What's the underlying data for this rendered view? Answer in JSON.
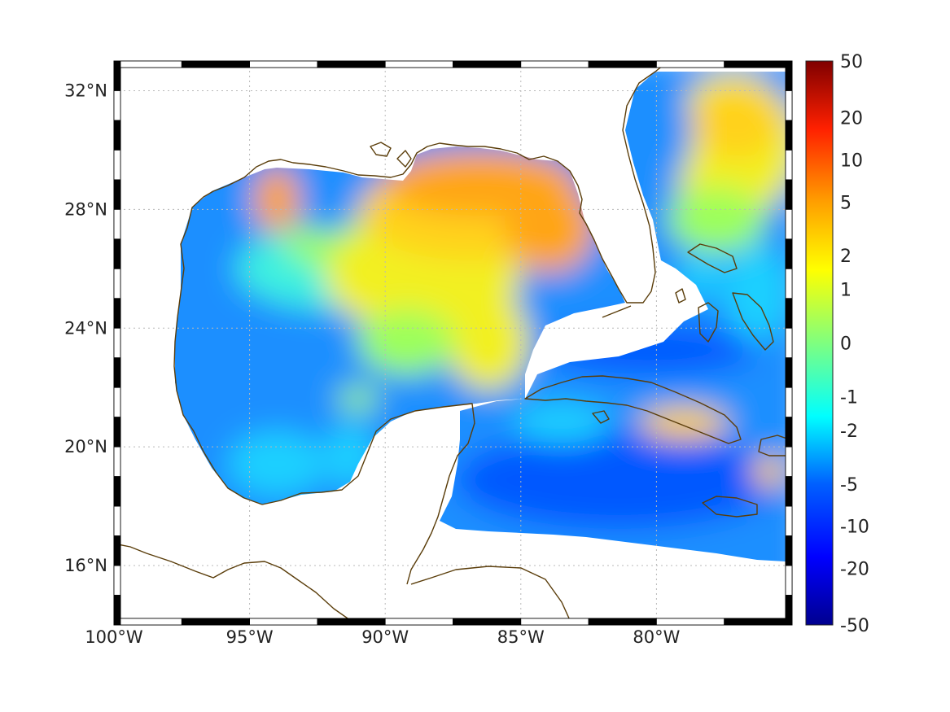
{
  "map": {
    "region": "Gulf of Mexico and Caribbean",
    "lon_range": [
      -100,
      -75
    ],
    "lat_range": [
      14,
      33
    ],
    "lon_ticks": [
      {
        "value": -100,
        "label": "100°W"
      },
      {
        "value": -95,
        "label": "95°W"
      },
      {
        "value": -90,
        "label": "90°W"
      },
      {
        "value": -85,
        "label": "85°W"
      },
      {
        "value": -80,
        "label": "80°W"
      }
    ],
    "lat_ticks": [
      {
        "value": 32,
        "label": "32°N"
      },
      {
        "value": 28,
        "label": "28°N"
      },
      {
        "value": 24,
        "label": "24°N"
      },
      {
        "value": 20,
        "label": "20°N"
      },
      {
        "value": 16,
        "label": "16°N"
      }
    ],
    "grid": true,
    "coastline_color": "#5a3d0a",
    "frame_style": "alternating black and white"
  },
  "colorbar": {
    "scale": "symmetric nonlinear",
    "colormap": "jet",
    "ticks": [
      "50",
      "20",
      "10",
      "5",
      "2",
      "1",
      "0",
      "-1",
      "-2",
      "-5",
      "-10",
      "-20",
      "-50"
    ]
  }
}
